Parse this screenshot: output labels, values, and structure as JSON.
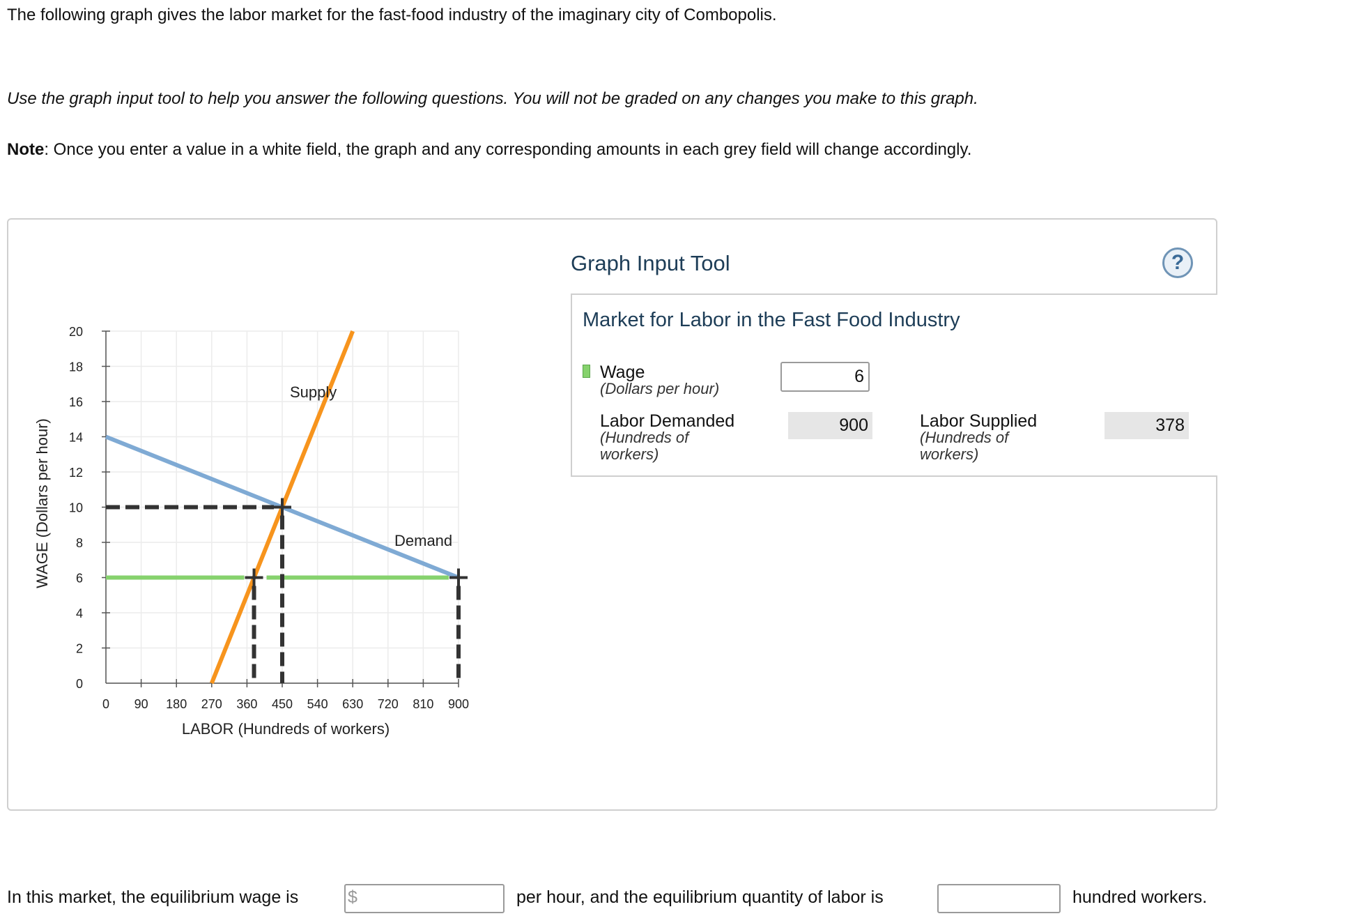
{
  "intro": {
    "line1": "The following graph gives the labor market for the fast-food industry of the imaginary city of Combopolis.",
    "line2": "Use the graph input tool to help you answer the following questions. You will not be graded on any changes you make to this graph.",
    "note_label": "Note",
    "note_text": ": Once you enter a value in a white field, the graph and any corresponding amounts in each grey field will change accordingly."
  },
  "tool": {
    "title": "Graph Input Tool",
    "help": "?",
    "subtitle": "Market for Labor in the Fast Food Industry",
    "wage_label": "Wage",
    "wage_unit": "(Dollars per hour)",
    "wage_value": "6",
    "demanded_label": "Labor Demanded",
    "demanded_unit1": "(Hundreds of",
    "demanded_unit2": "workers)",
    "demanded_value": "900",
    "supplied_label": "Labor Supplied",
    "supplied_unit1": "(Hundreds of",
    "supplied_unit2": "workers)",
    "supplied_value": "378"
  },
  "question": {
    "part1": "In this market, the equilibrium wage is",
    "dollar": "$",
    "part2": "per hour, and the equilibrium quantity of labor is",
    "part3": "hundred workers."
  },
  "colors": {
    "supply": "#f7941d",
    "demand": "#7faad4",
    "wage_line": "#86d26d",
    "guide": "#333333"
  },
  "chart_data": {
    "type": "line",
    "xlabel": "LABOR (Hundreds of workers)",
    "ylabel": "WAGE (Dollars per hour)",
    "xlim": [
      0,
      900
    ],
    "ylim": [
      0,
      20
    ],
    "xticks": [
      0,
      90,
      180,
      270,
      360,
      450,
      540,
      630,
      720,
      810,
      900
    ],
    "yticks": [
      0,
      2,
      4,
      6,
      8,
      10,
      12,
      14,
      16,
      18,
      20
    ],
    "grid": true,
    "series": [
      {
        "name": "Supply",
        "x": [
          270,
          630
        ],
        "y": [
          0,
          20
        ]
      },
      {
        "name": "Demand",
        "x": [
          0,
          900
        ],
        "y": [
          14,
          6
        ]
      }
    ],
    "wage_line": {
      "y": 6,
      "x": [
        0,
        900
      ]
    },
    "equilibrium": {
      "x": 450,
      "y": 10
    },
    "markers": [
      {
        "x": 378,
        "y": 6
      },
      {
        "x": 900,
        "y": 6
      },
      {
        "x": 450,
        "y": 10
      }
    ]
  }
}
